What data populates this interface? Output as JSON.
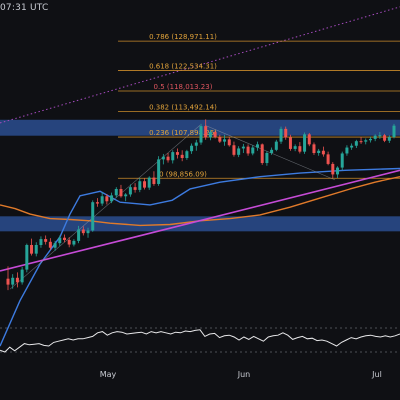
{
  "header": {
    "time_text": "07:31 UTC"
  },
  "colors": {
    "background": "#0f1014",
    "fib_line": "#c98a2a",
    "fib_label": "#e0a23a",
    "fib_label_mid": "#e0565f",
    "supply_zone": "#2a4d8f",
    "ma_fast": "#3d7be0",
    "ma_slow": "#e07a2a",
    "trendline": "#c64bd6",
    "diagonal": "#a64bbf",
    "candle_up": "#26a69a",
    "candle_down": "#ef5350",
    "rsi": "#e8e8ea",
    "rsi_bounds": "#8a8f98"
  },
  "chart_data": {
    "type": "candlestick",
    "x_axis": {
      "ticks": [
        "May",
        "Jun",
        "Jul"
      ]
    },
    "y_range": [
      73000,
      138000
    ],
    "fib_levels": [
      {
        "label": "0.786 (128,971.11)",
        "value": 128971.11
      },
      {
        "label": "0.618 (122,534.31)",
        "value": 122534.31
      },
      {
        "label": "0.5 (118,013.23)",
        "value": 118013.23
      },
      {
        "label": "0.382 (113,492.14)",
        "value": 113492.14
      },
      {
        "label": "0.236 (107,898.26)",
        "value": 107898.26
      },
      {
        "label": "0 (98,856.09)",
        "value": 98856.09
      }
    ],
    "zones": [
      {
        "low": 108200,
        "high": 111700
      },
      {
        "low": 87200,
        "high": 90500
      }
    ],
    "candles_ohlc": [
      [
        76800,
        79500,
        74300,
        75500
      ],
      [
        75500,
        77800,
        74600,
        77000
      ],
      [
        77000,
        78200,
        74900,
        76000
      ],
      [
        76000,
        79400,
        75500,
        78800
      ],
      [
        78800,
        84500,
        78200,
        84200
      ],
      [
        84200,
        85600,
        81900,
        82300
      ],
      [
        82300,
        84800,
        81700,
        84200
      ],
      [
        84200,
        86100,
        83600,
        85500
      ],
      [
        85500,
        86300,
        84300,
        84900
      ],
      [
        84900,
        85700,
        83100,
        83600
      ],
      [
        83600,
        85100,
        82900,
        84600
      ],
      [
        84600,
        86300,
        84000,
        85800
      ],
      [
        85800,
        86500,
        84800,
        85300
      ],
      [
        85300,
        85900,
        83700,
        84300
      ],
      [
        84300,
        85500,
        83900,
        85100
      ],
      [
        85100,
        88400,
        84600,
        87600
      ],
      [
        87600,
        88300,
        86300,
        86800
      ],
      [
        86800,
        88000,
        85800,
        87400
      ],
      [
        87400,
        94000,
        87100,
        93600
      ],
      [
        93600,
        94500,
        92600,
        93300
      ],
      [
        93300,
        95800,
        92800,
        94900
      ],
      [
        94900,
        95400,
        93100,
        93800
      ],
      [
        93800,
        95700,
        93400,
        95100
      ],
      [
        95100,
        96900,
        94600,
        96500
      ],
      [
        96500,
        97400,
        94600,
        94900
      ],
      [
        94900,
        95600,
        93800,
        95300
      ],
      [
        95300,
        97500,
        94800,
        96900
      ],
      [
        96900,
        97800,
        95700,
        96300
      ],
      [
        96300,
        98900,
        95800,
        98200
      ],
      [
        98200,
        98800,
        96400,
        96800
      ],
      [
        96800,
        99300,
        96300,
        99000
      ],
      [
        99000,
        100400,
        97200,
        97600
      ],
      [
        97600,
        103700,
        97200,
        103000
      ],
      [
        103000,
        104200,
        101900,
        103600
      ],
      [
        103600,
        104400,
        102300,
        102800
      ],
      [
        102800,
        105000,
        102100,
        104600
      ],
      [
        104600,
        105400,
        103200,
        104000
      ],
      [
        104000,
        105000,
        102600,
        103300
      ],
      [
        103300,
        105100,
        102900,
        104800
      ],
      [
        104800,
        106500,
        104200,
        106000
      ],
      [
        106000,
        107300,
        104900,
        106700
      ],
      [
        106700,
        110800,
        106200,
        110300
      ],
      [
        110300,
        111800,
        107300,
        107800
      ],
      [
        107800,
        109500,
        107200,
        109000
      ],
      [
        109000,
        109300,
        107600,
        107900
      ],
      [
        107900,
        108400,
        106600,
        106900
      ],
      [
        106900,
        108400,
        106000,
        107400
      ],
      [
        107400,
        108000,
        105800,
        106100
      ],
      [
        106100,
        106900,
        103600,
        104000
      ],
      [
        104000,
        105900,
        103500,
        105400
      ],
      [
        105400,
        106400,
        104400,
        105800
      ],
      [
        105800,
        106300,
        103800,
        104300
      ],
      [
        104300,
        106100,
        103900,
        105600
      ],
      [
        105600,
        106900,
        104900,
        106300
      ],
      [
        106300,
        106500,
        101800,
        102200
      ],
      [
        102200,
        104800,
        101600,
        104400
      ],
      [
        104400,
        105600,
        104000,
        105100
      ],
      [
        105100,
        107300,
        104800,
        106900
      ],
      [
        106900,
        110200,
        106400,
        109700
      ],
      [
        109700,
        110200,
        107300,
        107800
      ],
      [
        107800,
        108400,
        104900,
        105300
      ],
      [
        105300,
        106300,
        104800,
        105900
      ],
      [
        105900,
        106800,
        104300,
        104700
      ],
      [
        104700,
        108900,
        104200,
        108500
      ],
      [
        108500,
        108800,
        105900,
        106300
      ],
      [
        106300,
        106700,
        104000,
        104400
      ],
      [
        104400,
        105300,
        103800,
        104900
      ],
      [
        104900,
        105800,
        103600,
        104100
      ],
      [
        104100,
        104700,
        101700,
        102000
      ],
      [
        102000,
        102400,
        98900,
        99700
      ],
      [
        99700,
        101500,
        98900,
        101200
      ],
      [
        101200,
        104700,
        100600,
        104300
      ],
      [
        104300,
        106100,
        103800,
        105600
      ],
      [
        105600,
        106500,
        105100,
        106000
      ],
      [
        106000,
        107300,
        105500,
        107000
      ],
      [
        107000,
        107900,
        106400,
        106900
      ],
      [
        106900,
        107600,
        106300,
        107200
      ],
      [
        107200,
        108000,
        106700,
        107500
      ],
      [
        107500,
        108500,
        107000,
        108200
      ],
      [
        108200,
        109000,
        107500,
        108300
      ],
      [
        108300,
        108600,
        106800,
        107100
      ],
      [
        107100,
        108300,
        106600,
        107900
      ],
      [
        107900,
        110800,
        107600,
        110400
      ]
    ],
    "ma_fast": [
      [
        0,
        62000
      ],
      [
        20,
        72000
      ],
      [
        40,
        80000
      ],
      [
        60,
        86000
      ],
      [
        70,
        91000
      ],
      [
        80,
        95000
      ],
      [
        100,
        96000
      ],
      [
        120,
        93600
      ],
      [
        150,
        93000
      ],
      [
        172,
        94000
      ],
      [
        190,
        96500
      ],
      [
        220,
        98000
      ],
      [
        260,
        99200
      ],
      [
        300,
        100000
      ],
      [
        345,
        100600
      ],
      [
        400,
        101000
      ]
    ],
    "ma_slow": [
      [
        0,
        93000
      ],
      [
        15,
        92200
      ],
      [
        30,
        91000
      ],
      [
        50,
        90000
      ],
      [
        70,
        89800
      ],
      [
        90,
        89500
      ],
      [
        110,
        89000
      ],
      [
        140,
        88500
      ],
      [
        170,
        88700
      ],
      [
        200,
        89500
      ],
      [
        230,
        90000
      ],
      [
        260,
        90800
      ],
      [
        290,
        92500
      ],
      [
        320,
        94500
      ],
      [
        350,
        96500
      ],
      [
        375,
        98000
      ],
      [
        400,
        99200
      ]
    ],
    "trendline": [
      [
        0,
        78500
      ],
      [
        400,
        100600
      ]
    ],
    "diagonal_dotted": [
      [
        0,
        111000
      ],
      [
        400,
        136500
      ]
    ],
    "rsi": {
      "values": [
        33,
        30,
        38,
        32,
        38,
        44,
        42,
        43,
        44,
        41,
        40,
        46,
        48,
        50,
        52,
        50,
        52,
        52,
        54,
        56,
        62,
        64,
        58,
        62,
        64,
        63,
        60,
        61,
        62,
        63,
        60,
        64,
        62,
        64,
        62,
        60,
        63,
        62,
        65,
        64,
        66,
        67,
        56,
        60,
        61,
        54,
        57,
        58,
        55,
        50,
        55,
        51,
        56,
        52,
        48,
        55,
        57,
        58,
        62,
        58,
        51,
        54,
        56,
        52,
        53,
        49,
        50,
        48,
        44,
        40,
        46,
        50,
        54,
        52,
        55,
        57,
        58,
        56,
        55,
        57,
        55,
        57,
        60
      ],
      "upper": 70,
      "lower": 30
    }
  }
}
